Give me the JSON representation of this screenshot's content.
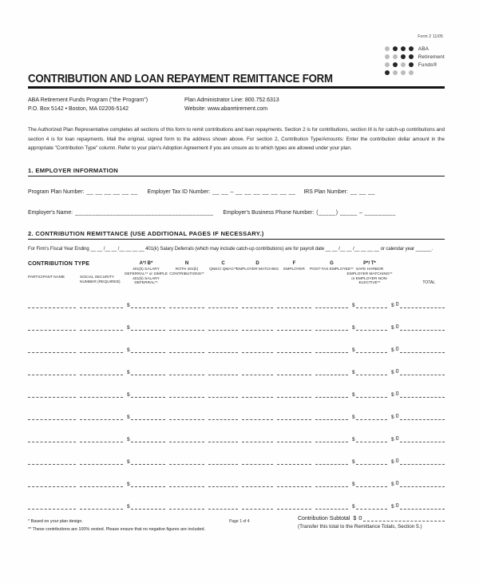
{
  "form_code": "Form 2  11/05",
  "logo": {
    "dot_matrix": [
      [
        0,
        1,
        1,
        1
      ],
      [
        0,
        0,
        1,
        1
      ],
      [
        0,
        1,
        0,
        1
      ],
      [
        1,
        0,
        0,
        0
      ]
    ],
    "dark_color": "#262626",
    "light_color": "#bcbcbc",
    "labels": [
      "ABA",
      "Retirement",
      "Funds®"
    ]
  },
  "header": {
    "title": "CONTRIBUTION AND LOAN REPAYMENT REMITTANCE FORM"
  },
  "contact": {
    "program_name": "ABA Retirement Funds Program (\"the Program\")",
    "address": "P.O. Box 5142 • Boston, MA 02206-5142",
    "admin_line": "Plan Administrator Line: 800.752.6313",
    "website": "Website: www.abaretirement.com"
  },
  "instructions": "The Authorized Plan Representative completes all sections of this form to remit contributions and loan repayments. Section 2 is for contributions, section III is for catch-up contributions and section 4 is for loan repayments. Mail the original, signed form to the address shown above. For section 2, Contribution Type/Amounts: Enter the contribution dollar amount in the appropriate \"Contribution Type\" column. Refer to your plan's Adoption Agreement if you are unsure as to which types are allowed under your plan.",
  "section1": {
    "heading": "1.   EMPLOYER INFORMATION",
    "program_plan_label": "Program Plan Number:",
    "program_plan_blanks": "__ __ __ __ __ __",
    "tax_id_label": "Employer Tax ID Number:",
    "tax_id_blanks": "__ __ – __ __ __ __ __ __ __",
    "irs_plan_label": "IRS Plan Number:",
    "irs_plan_blanks": "__ __ __",
    "employer_name_label": "Employer's Name:",
    "employer_name_blank": "________________________________________",
    "phone_label": "Employer's Business Phone Number:",
    "phone_blanks": "(_____) _____  –  _________"
  },
  "section2": {
    "heading": "2.   CONTRIBUTION REMITTANCE (USE ADDITIONAL PAGES IF NECESSARY.)",
    "fiscal_line": "For Firm's Fiscal Year Ending __ __ /__ __ /__ __ __ __  401(k) Salary Deferrals (which may include catch-up contributions) are for payroll date __ __ /__ __ /__ __ __ __  or calendar year ______."
  },
  "contribution_table": {
    "caption": "CONTRIBUTION TYPE",
    "columns": [
      {
        "key": "participant-name",
        "kind": "plain",
        "code": "",
        "sub": "PARTICIPANT NAME"
      },
      {
        "key": "ssn",
        "kind": "plain",
        "code": "",
        "sub": "SOCIAL SECURITY NUMBER (REQUIRED)"
      },
      {
        "key": "a-b",
        "kind": "money",
        "code": "A*/ B*",
        "sub": "401(k) SALARY DEFERRAL** or SIMPLE 401(k) SALARY DEFERRAL**"
      },
      {
        "key": "n",
        "kind": "plain",
        "code": "N",
        "sub": "ROTH 401(k) CONTRIBUTIONS**"
      },
      {
        "key": "c",
        "kind": "plain",
        "code": "C",
        "sub": "QNEC/ QMAC**"
      },
      {
        "key": "d",
        "kind": "plain",
        "code": "D",
        "sub": "EMPLOYER MATCHING"
      },
      {
        "key": "f",
        "kind": "plain",
        "code": "F",
        "sub": "EMPLOYER"
      },
      {
        "key": "g",
        "kind": "plain",
        "code": "G",
        "sub": "POST-TAX EMPLOYEE**"
      },
      {
        "key": "p-t",
        "kind": "money",
        "code": "P*/ T*",
        "sub": "SAFE HARBOR EMPLOYER MATCHING** or EMPLOYER NON-ELECTIVE**"
      },
      {
        "key": "total",
        "kind": "total",
        "code": "",
        "sub": "TOTAL"
      }
    ],
    "currency_symbol": "$",
    "rows": [
      {
        "total": "0"
      },
      {
        "total": "0"
      },
      {
        "total": "0"
      },
      {
        "total": "0"
      },
      {
        "total": "0"
      },
      {
        "total": "0"
      },
      {
        "total": "0"
      },
      {
        "total": "0"
      },
      {
        "total": "0"
      },
      {
        "total": "0"
      }
    ]
  },
  "footer": {
    "footnote1": "*   Based on your plan design.",
    "footnote2": "** These contributions are 100% vested. Please ensure that no negative figures are included.",
    "page": "Page 1 of 4",
    "subtotal_label": "Contribution Subtotal",
    "subtotal_currency": "$",
    "subtotal_value": "0",
    "transfer_note": "(Transfer this total to the Remittance Totals, Section 5.)"
  }
}
